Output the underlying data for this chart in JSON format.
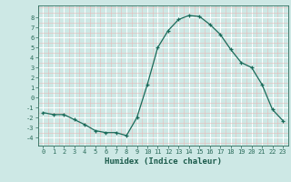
{
  "x": [
    0,
    1,
    2,
    3,
    4,
    5,
    6,
    7,
    8,
    9,
    10,
    11,
    12,
    13,
    14,
    15,
    16,
    17,
    18,
    19,
    20,
    21,
    22,
    23
  ],
  "y": [
    -1.5,
    -1.7,
    -1.7,
    -2.2,
    -2.7,
    -3.3,
    -3.5,
    -3.5,
    -3.8,
    -2.0,
    1.3,
    5.0,
    6.7,
    7.8,
    8.2,
    8.1,
    7.3,
    6.3,
    4.8,
    3.5,
    3.0,
    1.3,
    -1.2,
    -2.3
  ],
  "line_color": "#1a6b5a",
  "marker": "+",
  "marker_size": 3,
  "xlabel": "Humidex (Indice chaleur)",
  "xlim": [
    -0.5,
    23.5
  ],
  "ylim": [
    -4.8,
    9.2
  ],
  "yticks": [
    -4,
    -3,
    -2,
    -1,
    0,
    1,
    2,
    3,
    4,
    5,
    6,
    7,
    8
  ],
  "xticks": [
    0,
    1,
    2,
    3,
    4,
    5,
    6,
    7,
    8,
    9,
    10,
    11,
    12,
    13,
    14,
    15,
    16,
    17,
    18,
    19,
    20,
    21,
    22,
    23
  ],
  "bg_color": "#cde8e5",
  "grid_color": "#ffffff",
  "grid_minor_color": "#e8f5f4",
  "tick_color": "#2a6b5a",
  "label_color": "#1a5a4a",
  "spine_color": "#2a6b5a"
}
